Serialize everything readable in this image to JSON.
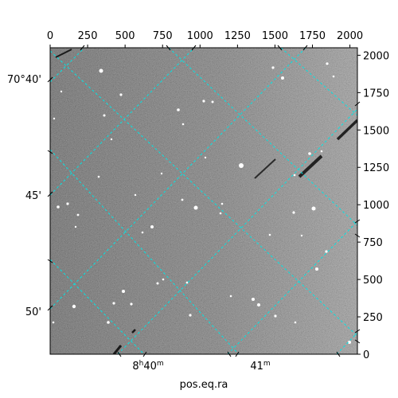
{
  "figure": {
    "xlabel": "pos.eq.ra",
    "ylabel": ""
  },
  "pixel_axes": {
    "top_ticks": [
      "0",
      "250",
      "500",
      "750",
      "1000",
      "1250",
      "1500",
      "1750",
      "2000"
    ],
    "top_values": [
      0,
      250,
      500,
      750,
      1000,
      1250,
      1500,
      1750,
      2000
    ],
    "right_ticks": [
      "0",
      "250",
      "500",
      "750",
      "1000",
      "1250",
      "1500",
      "1750",
      "2000"
    ],
    "right_values": [
      0,
      250,
      500,
      750,
      1000,
      1250,
      1500,
      1750,
      2000
    ],
    "range": [
      0,
      2050
    ]
  },
  "world_axes": {
    "dec_ticks": [
      "70°40'",
      "45'",
      "50'"
    ],
    "ra_ticks": [
      {
        "base": "8",
        "unit1": "h",
        "rest": "40",
        "unit2": "m"
      },
      {
        "base": "41",
        "unit1": "m",
        "rest": "",
        "unit2": ""
      }
    ]
  },
  "style": {
    "grid_color": "#00e5e5",
    "frame_color": "#000000",
    "background_color": "#ffffff"
  }
}
